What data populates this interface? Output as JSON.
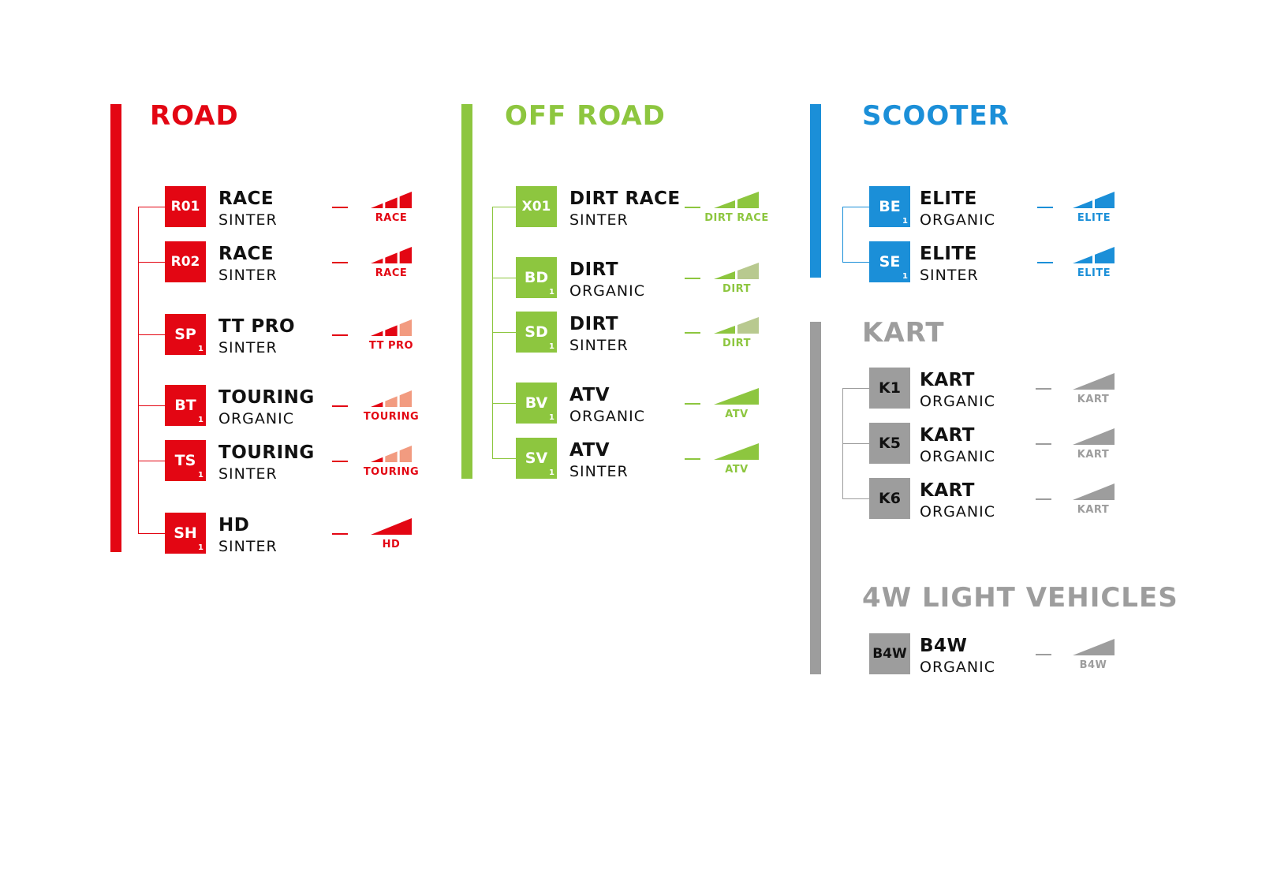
{
  "colors": {
    "road": "#e30613",
    "road_light": "#f29b80",
    "offroad": "#8dc63f",
    "offroad_light": "#b8c98f",
    "scooter": "#1b8fd8",
    "kart": "#9d9d9d"
  },
  "sections": [
    {
      "id": "road",
      "title": "ROAD",
      "color": "#e30613",
      "light": "#f29b80",
      "code_text": "#ffffff",
      "items": [
        {
          "code": "R01",
          "sub": "",
          "name": "RACE",
          "material": "SINTER",
          "level": "RACE",
          "segments": 3,
          "filled": 3,
          "level_icon": "performance-bars-icon"
        },
        {
          "code": "R02",
          "sub": "",
          "name": "RACE",
          "material": "SINTER",
          "level": "RACE",
          "segments": 3,
          "filled": 3,
          "level_icon": "performance-bars-icon"
        },
        {
          "code": "SP",
          "sub": "1",
          "name": "TT PRO",
          "material": "SINTER",
          "level": "TT PRO",
          "segments": 3,
          "filled": 2,
          "level_icon": "performance-bars-icon"
        },
        {
          "code": "BT",
          "sub": "1",
          "name": "TOURING",
          "material": "ORGANIC",
          "level": "TOURING",
          "segments": 3,
          "filled": 1,
          "level_icon": "performance-bars-icon"
        },
        {
          "code": "TS",
          "sub": "1",
          "name": "TOURING",
          "material": "SINTER",
          "level": "TOURING",
          "segments": 3,
          "filled": 1,
          "level_icon": "performance-bars-icon"
        },
        {
          "code": "SH",
          "sub": "1",
          "name": "HD",
          "material": "SINTER",
          "level": "HD",
          "segments": 1,
          "filled": 1,
          "level_icon": "performance-bars-icon"
        }
      ]
    },
    {
      "id": "offroad",
      "title": "OFF ROAD",
      "color": "#8dc63f",
      "light": "#b8c98f",
      "code_text": "#ffffff",
      "items": [
        {
          "code": "X01",
          "sub": "",
          "name": "DIRT RACE",
          "material": "SINTER",
          "level": "DIRT RACE",
          "segments": 2,
          "filled": 2,
          "level_icon": "performance-bars-icon"
        },
        {
          "code": "BD",
          "sub": "1",
          "name": "DIRT",
          "material": "ORGANIC",
          "level": "DIRT",
          "segments": 2,
          "filled": 1,
          "level_icon": "performance-bars-icon"
        },
        {
          "code": "SD",
          "sub": "1",
          "name": "DIRT",
          "material": "SINTER",
          "level": "DIRT",
          "segments": 2,
          "filled": 1,
          "level_icon": "performance-bars-icon"
        },
        {
          "code": "BV",
          "sub": "1",
          "name": "ATV",
          "material": "ORGANIC",
          "level": "ATV",
          "segments": 1,
          "filled": 1,
          "level_icon": "performance-bars-icon"
        },
        {
          "code": "SV",
          "sub": "1",
          "name": "ATV",
          "material": "SINTER",
          "level": "ATV",
          "segments": 1,
          "filled": 1,
          "level_icon": "performance-bars-icon"
        }
      ]
    },
    {
      "id": "scooter",
      "title": "SCOOTER",
      "color": "#1b8fd8",
      "light": "#1b8fd8",
      "code_text": "#ffffff",
      "items": [
        {
          "code": "BE",
          "sub": "1",
          "name": "ELITE",
          "material": "ORGANIC",
          "level": "ELITE",
          "segments": 2,
          "filled": 2,
          "level_icon": "performance-bars-icon"
        },
        {
          "code": "SE",
          "sub": "1",
          "name": "ELITE",
          "material": "SINTER",
          "level": "ELITE",
          "segments": 2,
          "filled": 2,
          "level_icon": "performance-bars-icon"
        }
      ]
    },
    {
      "id": "kart",
      "title": "KART",
      "color": "#9d9d9d",
      "light": "#9d9d9d",
      "code_text": "#111111",
      "items": [
        {
          "code": "K1",
          "sub": "",
          "name": "KART",
          "material": "ORGANIC",
          "level": "KART",
          "segments": 1,
          "filled": 1,
          "level_icon": "performance-bars-icon"
        },
        {
          "code": "K5",
          "sub": "",
          "name": "KART",
          "material": "ORGANIC",
          "level": "KART",
          "segments": 1,
          "filled": 1,
          "level_icon": "performance-bars-icon"
        },
        {
          "code": "K6",
          "sub": "",
          "name": "KART",
          "material": "ORGANIC",
          "level": "KART",
          "segments": 1,
          "filled": 1,
          "level_icon": "performance-bars-icon"
        }
      ]
    },
    {
      "id": "light-vehicles",
      "title": "4W LIGHT VEHICLES",
      "color": "#9d9d9d",
      "light": "#9d9d9d",
      "code_text": "#111111",
      "items": [
        {
          "code": "B4W",
          "sub": "",
          "name": "B4W",
          "material": "ORGANIC",
          "level": "B4W",
          "segments": 1,
          "filled": 1,
          "level_icon": "performance-bars-icon"
        }
      ]
    }
  ]
}
